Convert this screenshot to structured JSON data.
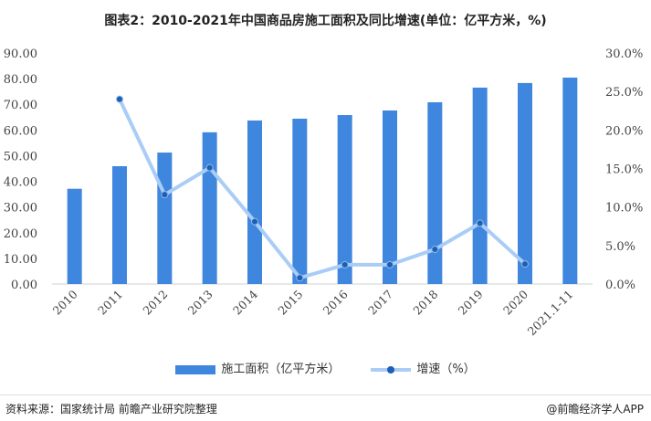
{
  "chart_data": {
    "type": "bar+line",
    "title": "图表2：2010-2021年中国商品房施工面积及同比增速(单位：亿平方米，%)",
    "categories": [
      "2010",
      "2011",
      "2012",
      "2013",
      "2014",
      "2015",
      "2016",
      "2017",
      "2018",
      "2019",
      "2020",
      "2021.1-11"
    ],
    "series": [
      {
        "name": "施工面积（亿平方米）",
        "type": "bar",
        "axis": "left",
        "color": "#3f86de",
        "values": [
          37.1,
          45.9,
          51.2,
          59.1,
          63.7,
          64.4,
          65.8,
          67.6,
          70.8,
          76.5,
          78.3,
          80.4
        ]
      },
      {
        "name": "增速（%）",
        "type": "line",
        "axis": "right",
        "color": "#a9cdf6",
        "values": [
          null,
          24.0,
          11.6,
          15.1,
          8.1,
          0.8,
          2.5,
          2.5,
          4.5,
          7.9,
          2.6,
          null
        ]
      }
    ],
    "ylim": [
      0,
      90
    ],
    "y2lim": [
      0,
      30
    ],
    "yticks": [
      "0.00",
      "10.00",
      "20.00",
      "30.00",
      "40.00",
      "50.00",
      "60.00",
      "70.00",
      "80.00",
      "90.00"
    ],
    "y2ticks": [
      "0.0%",
      "5.0%",
      "10.0%",
      "15.0%",
      "20.0%",
      "25.0%",
      "30.0%"
    ],
    "legend": "bottom",
    "grid": false
  },
  "footer": {
    "source": "资料来源：国家统计局 前瞻产业研究院整理",
    "brand": "@前瞻经济学人APP"
  }
}
